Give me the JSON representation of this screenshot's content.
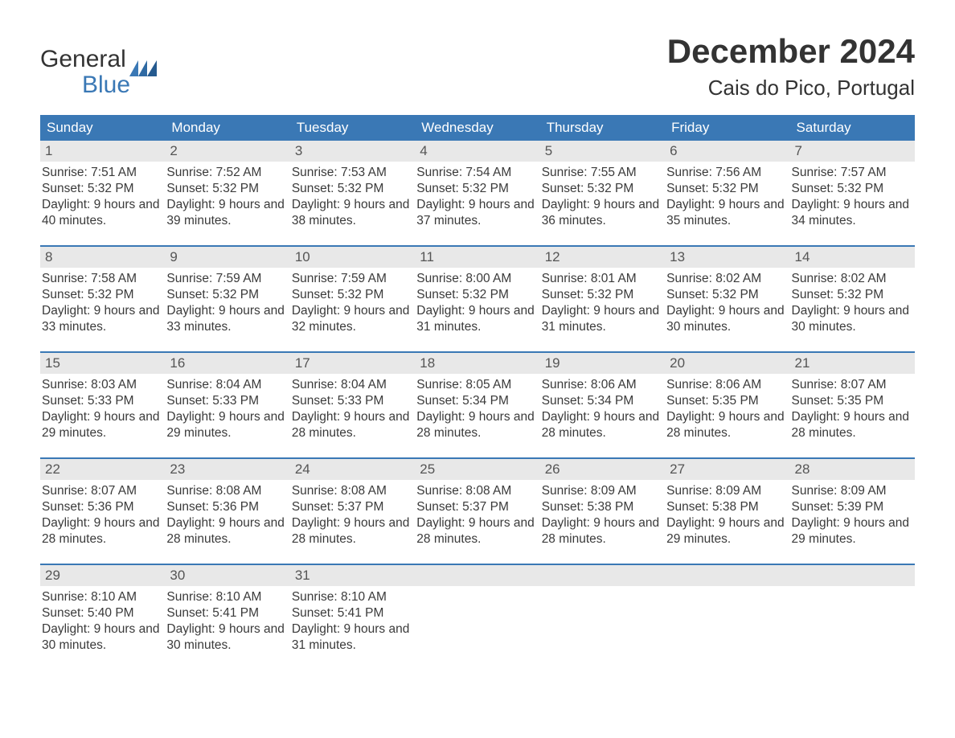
{
  "brand": {
    "word1": "General",
    "word2": "Blue",
    "accent_color": "#3a78b5"
  },
  "title": "December 2024",
  "location": "Cais do Pico, Portugal",
  "colors": {
    "header_bg": "#3a78b5",
    "header_text": "#ffffff",
    "daynum_bg": "#e8e8e8",
    "week_border": "#3a78b5",
    "page_bg": "#ffffff",
    "text": "#333333"
  },
  "dayHeaders": [
    "Sunday",
    "Monday",
    "Tuesday",
    "Wednesday",
    "Thursday",
    "Friday",
    "Saturday"
  ],
  "weeks": [
    [
      {
        "n": "1",
        "sunrise": "Sunrise: 7:51 AM",
        "sunset": "Sunset: 5:32 PM",
        "daylight": "Daylight: 9 hours and 40 minutes."
      },
      {
        "n": "2",
        "sunrise": "Sunrise: 7:52 AM",
        "sunset": "Sunset: 5:32 PM",
        "daylight": "Daylight: 9 hours and 39 minutes."
      },
      {
        "n": "3",
        "sunrise": "Sunrise: 7:53 AM",
        "sunset": "Sunset: 5:32 PM",
        "daylight": "Daylight: 9 hours and 38 minutes."
      },
      {
        "n": "4",
        "sunrise": "Sunrise: 7:54 AM",
        "sunset": "Sunset: 5:32 PM",
        "daylight": "Daylight: 9 hours and 37 minutes."
      },
      {
        "n": "5",
        "sunrise": "Sunrise: 7:55 AM",
        "sunset": "Sunset: 5:32 PM",
        "daylight": "Daylight: 9 hours and 36 minutes."
      },
      {
        "n": "6",
        "sunrise": "Sunrise: 7:56 AM",
        "sunset": "Sunset: 5:32 PM",
        "daylight": "Daylight: 9 hours and 35 minutes."
      },
      {
        "n": "7",
        "sunrise": "Sunrise: 7:57 AM",
        "sunset": "Sunset: 5:32 PM",
        "daylight": "Daylight: 9 hours and 34 minutes."
      }
    ],
    [
      {
        "n": "8",
        "sunrise": "Sunrise: 7:58 AM",
        "sunset": "Sunset: 5:32 PM",
        "daylight": "Daylight: 9 hours and 33 minutes."
      },
      {
        "n": "9",
        "sunrise": "Sunrise: 7:59 AM",
        "sunset": "Sunset: 5:32 PM",
        "daylight": "Daylight: 9 hours and 33 minutes."
      },
      {
        "n": "10",
        "sunrise": "Sunrise: 7:59 AM",
        "sunset": "Sunset: 5:32 PM",
        "daylight": "Daylight: 9 hours and 32 minutes."
      },
      {
        "n": "11",
        "sunrise": "Sunrise: 8:00 AM",
        "sunset": "Sunset: 5:32 PM",
        "daylight": "Daylight: 9 hours and 31 minutes."
      },
      {
        "n": "12",
        "sunrise": "Sunrise: 8:01 AM",
        "sunset": "Sunset: 5:32 PM",
        "daylight": "Daylight: 9 hours and 31 minutes."
      },
      {
        "n": "13",
        "sunrise": "Sunrise: 8:02 AM",
        "sunset": "Sunset: 5:32 PM",
        "daylight": "Daylight: 9 hours and 30 minutes."
      },
      {
        "n": "14",
        "sunrise": "Sunrise: 8:02 AM",
        "sunset": "Sunset: 5:32 PM",
        "daylight": "Daylight: 9 hours and 30 minutes."
      }
    ],
    [
      {
        "n": "15",
        "sunrise": "Sunrise: 8:03 AM",
        "sunset": "Sunset: 5:33 PM",
        "daylight": "Daylight: 9 hours and 29 minutes."
      },
      {
        "n": "16",
        "sunrise": "Sunrise: 8:04 AM",
        "sunset": "Sunset: 5:33 PM",
        "daylight": "Daylight: 9 hours and 29 minutes."
      },
      {
        "n": "17",
        "sunrise": "Sunrise: 8:04 AM",
        "sunset": "Sunset: 5:33 PM",
        "daylight": "Daylight: 9 hours and 28 minutes."
      },
      {
        "n": "18",
        "sunrise": "Sunrise: 8:05 AM",
        "sunset": "Sunset: 5:34 PM",
        "daylight": "Daylight: 9 hours and 28 minutes."
      },
      {
        "n": "19",
        "sunrise": "Sunrise: 8:06 AM",
        "sunset": "Sunset: 5:34 PM",
        "daylight": "Daylight: 9 hours and 28 minutes."
      },
      {
        "n": "20",
        "sunrise": "Sunrise: 8:06 AM",
        "sunset": "Sunset: 5:35 PM",
        "daylight": "Daylight: 9 hours and 28 minutes."
      },
      {
        "n": "21",
        "sunrise": "Sunrise: 8:07 AM",
        "sunset": "Sunset: 5:35 PM",
        "daylight": "Daylight: 9 hours and 28 minutes."
      }
    ],
    [
      {
        "n": "22",
        "sunrise": "Sunrise: 8:07 AM",
        "sunset": "Sunset: 5:36 PM",
        "daylight": "Daylight: 9 hours and 28 minutes."
      },
      {
        "n": "23",
        "sunrise": "Sunrise: 8:08 AM",
        "sunset": "Sunset: 5:36 PM",
        "daylight": "Daylight: 9 hours and 28 minutes."
      },
      {
        "n": "24",
        "sunrise": "Sunrise: 8:08 AM",
        "sunset": "Sunset: 5:37 PM",
        "daylight": "Daylight: 9 hours and 28 minutes."
      },
      {
        "n": "25",
        "sunrise": "Sunrise: 8:08 AM",
        "sunset": "Sunset: 5:37 PM",
        "daylight": "Daylight: 9 hours and 28 minutes."
      },
      {
        "n": "26",
        "sunrise": "Sunrise: 8:09 AM",
        "sunset": "Sunset: 5:38 PM",
        "daylight": "Daylight: 9 hours and 28 minutes."
      },
      {
        "n": "27",
        "sunrise": "Sunrise: 8:09 AM",
        "sunset": "Sunset: 5:38 PM",
        "daylight": "Daylight: 9 hours and 29 minutes."
      },
      {
        "n": "28",
        "sunrise": "Sunrise: 8:09 AM",
        "sunset": "Sunset: 5:39 PM",
        "daylight": "Daylight: 9 hours and 29 minutes."
      }
    ],
    [
      {
        "n": "29",
        "sunrise": "Sunrise: 8:10 AM",
        "sunset": "Sunset: 5:40 PM",
        "daylight": "Daylight: 9 hours and 30 minutes."
      },
      {
        "n": "30",
        "sunrise": "Sunrise: 8:10 AM",
        "sunset": "Sunset: 5:41 PM",
        "daylight": "Daylight: 9 hours and 30 minutes."
      },
      {
        "n": "31",
        "sunrise": "Sunrise: 8:10 AM",
        "sunset": "Sunset: 5:41 PM",
        "daylight": "Daylight: 9 hours and 31 minutes."
      },
      null,
      null,
      null,
      null
    ]
  ]
}
